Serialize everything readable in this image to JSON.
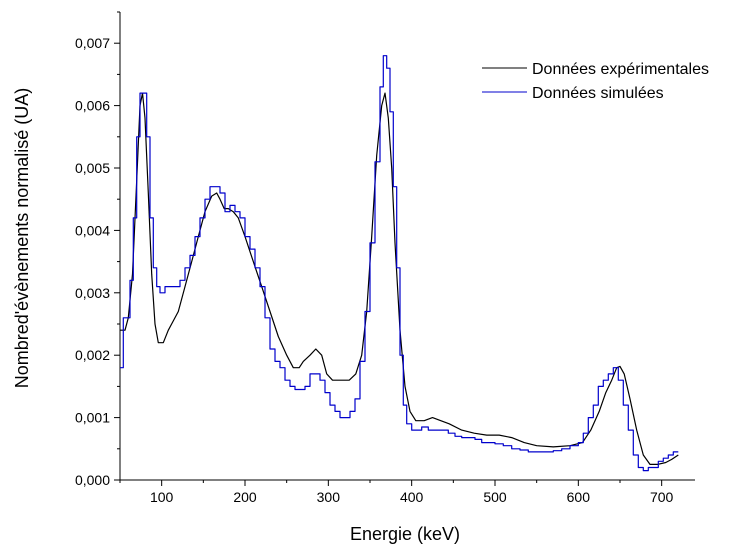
{
  "chart_data": {
    "type": "line",
    "title": "",
    "xlabel": "Energie (keV)",
    "ylabel": "Nombred'évènements normalisé (UA)",
    "xlim": [
      50,
      740
    ],
    "ylim": [
      0,
      0.0075
    ],
    "x_ticks": [
      100,
      200,
      300,
      400,
      500,
      600,
      700
    ],
    "y_ticks": [
      {
        "value": 0.0,
        "label": "0,000"
      },
      {
        "value": 0.001,
        "label": "0,001"
      },
      {
        "value": 0.002,
        "label": "0,002"
      },
      {
        "value": 0.003,
        "label": "0,003"
      },
      {
        "value": 0.004,
        "label": "0,004"
      },
      {
        "value": 0.005,
        "label": "0,005"
      },
      {
        "value": 0.006,
        "label": "0,006"
      },
      {
        "value": 0.007,
        "label": "0,007"
      }
    ],
    "grid": false,
    "legend_position": "top-right",
    "series": [
      {
        "name": "Données expérimentales",
        "color": "#000000",
        "style": "line",
        "points": [
          [
            50,
            0.0024
          ],
          [
            56,
            0.0024
          ],
          [
            60,
            0.0026
          ],
          [
            65,
            0.0033
          ],
          [
            70,
            0.0048
          ],
          [
            74,
            0.006
          ],
          [
            77,
            0.0062
          ],
          [
            80,
            0.0058
          ],
          [
            84,
            0.0046
          ],
          [
            88,
            0.0033
          ],
          [
            92,
            0.0025
          ],
          [
            96,
            0.0022
          ],
          [
            102,
            0.0022
          ],
          [
            108,
            0.0024
          ],
          [
            114,
            0.00255
          ],
          [
            120,
            0.0027
          ],
          [
            128,
            0.0031
          ],
          [
            136,
            0.0035
          ],
          [
            144,
            0.0039
          ],
          [
            152,
            0.0043
          ],
          [
            160,
            0.00455
          ],
          [
            166,
            0.0046
          ],
          [
            170,
            0.0045
          ],
          [
            175,
            0.00435
          ],
          [
            180,
            0.00435
          ],
          [
            186,
            0.0043
          ],
          [
            192,
            0.0042
          ],
          [
            200,
            0.0039
          ],
          [
            210,
            0.0035
          ],
          [
            220,
            0.0031
          ],
          [
            230,
            0.0027
          ],
          [
            240,
            0.0023
          ],
          [
            250,
            0.002
          ],
          [
            258,
            0.0018
          ],
          [
            265,
            0.0018
          ],
          [
            270,
            0.0019
          ],
          [
            278,
            0.002
          ],
          [
            285,
            0.0021
          ],
          [
            292,
            0.002
          ],
          [
            298,
            0.0017
          ],
          [
            305,
            0.0016
          ],
          [
            315,
            0.0016
          ],
          [
            325,
            0.0016
          ],
          [
            333,
            0.0017
          ],
          [
            340,
            0.002
          ],
          [
            346,
            0.0027
          ],
          [
            352,
            0.0039
          ],
          [
            358,
            0.0052
          ],
          [
            364,
            0.006
          ],
          [
            368,
            0.0062
          ],
          [
            372,
            0.0058
          ],
          [
            376,
            0.005
          ],
          [
            380,
            0.0038
          ],
          [
            386,
            0.0024
          ],
          [
            392,
            0.0015
          ],
          [
            398,
            0.0011
          ],
          [
            405,
            0.00095
          ],
          [
            415,
            0.00095
          ],
          [
            425,
            0.001
          ],
          [
            435,
            0.00095
          ],
          [
            445,
            0.0009
          ],
          [
            460,
            0.0008
          ],
          [
            475,
            0.00075
          ],
          [
            490,
            0.00072
          ],
          [
            505,
            0.00072
          ],
          [
            520,
            0.00068
          ],
          [
            535,
            0.0006
          ],
          [
            550,
            0.00055
          ],
          [
            570,
            0.00053
          ],
          [
            590,
            0.00055
          ],
          [
            605,
            0.0006
          ],
          [
            615,
            0.0008
          ],
          [
            625,
            0.0011
          ],
          [
            633,
            0.0014
          ],
          [
            640,
            0.0016
          ],
          [
            646,
            0.0018
          ],
          [
            650,
            0.00182
          ],
          [
            655,
            0.0017
          ],
          [
            662,
            0.0013
          ],
          [
            670,
            0.0008
          ],
          [
            678,
            0.0004
          ],
          [
            686,
            0.00025
          ],
          [
            695,
            0.00025
          ],
          [
            705,
            0.00028
          ],
          [
            712,
            0.00033
          ],
          [
            720,
            0.0004
          ]
        ]
      },
      {
        "name": "Données simulées",
        "color": "#0000cc",
        "style": "step",
        "points": [
          [
            50,
            0.0018
          ],
          [
            54,
            0.0026
          ],
          [
            58,
            0.0026
          ],
          [
            62,
            0.0032
          ],
          [
            66,
            0.0042
          ],
          [
            70,
            0.0055
          ],
          [
            74,
            0.0062
          ],
          [
            78,
            0.0062
          ],
          [
            82,
            0.0055
          ],
          [
            86,
            0.0042
          ],
          [
            90,
            0.0034
          ],
          [
            94,
            0.0031
          ],
          [
            98,
            0.003
          ],
          [
            104,
            0.0031
          ],
          [
            110,
            0.0031
          ],
          [
            116,
            0.0031
          ],
          [
            122,
            0.0032
          ],
          [
            128,
            0.0034
          ],
          [
            134,
            0.0036
          ],
          [
            140,
            0.0039
          ],
          [
            146,
            0.0042
          ],
          [
            152,
            0.0045
          ],
          [
            158,
            0.0047
          ],
          [
            164,
            0.0047
          ],
          [
            170,
            0.0046
          ],
          [
            176,
            0.0043
          ],
          [
            182,
            0.0044
          ],
          [
            188,
            0.0043
          ],
          [
            194,
            0.0042
          ],
          [
            200,
            0.0039
          ],
          [
            206,
            0.0037
          ],
          [
            212,
            0.0034
          ],
          [
            218,
            0.0031
          ],
          [
            224,
            0.0026
          ],
          [
            230,
            0.0021
          ],
          [
            236,
            0.0019
          ],
          [
            242,
            0.0018
          ],
          [
            248,
            0.0016
          ],
          [
            254,
            0.0015
          ],
          [
            260,
            0.00145
          ],
          [
            266,
            0.00145
          ],
          [
            272,
            0.0015
          ],
          [
            278,
            0.0017
          ],
          [
            284,
            0.0017
          ],
          [
            290,
            0.0016
          ],
          [
            296,
            0.0014
          ],
          [
            302,
            0.0012
          ],
          [
            308,
            0.0011
          ],
          [
            314,
            0.001
          ],
          [
            320,
            0.001
          ],
          [
            326,
            0.0011
          ],
          [
            332,
            0.0013
          ],
          [
            338,
            0.0019
          ],
          [
            344,
            0.0027
          ],
          [
            350,
            0.0038
          ],
          [
            356,
            0.0051
          ],
          [
            362,
            0.0063
          ],
          [
            366,
            0.0068
          ],
          [
            370,
            0.0066
          ],
          [
            374,
            0.0059
          ],
          [
            378,
            0.0047
          ],
          [
            382,
            0.0034
          ],
          [
            386,
            0.002
          ],
          [
            390,
            0.0012
          ],
          [
            394,
            0.0009
          ],
          [
            400,
            0.0008
          ],
          [
            406,
            0.0008
          ],
          [
            412,
            0.00085
          ],
          [
            420,
            0.0008
          ],
          [
            428,
            0.0008
          ],
          [
            436,
            0.0008
          ],
          [
            444,
            0.00075
          ],
          [
            452,
            0.0007
          ],
          [
            460,
            0.00068
          ],
          [
            468,
            0.00068
          ],
          [
            476,
            0.00065
          ],
          [
            484,
            0.0006
          ],
          [
            492,
            0.0006
          ],
          [
            500,
            0.00058
          ],
          [
            510,
            0.00055
          ],
          [
            520,
            0.0005
          ],
          [
            530,
            0.00048
          ],
          [
            540,
            0.00045
          ],
          [
            550,
            0.00045
          ],
          [
            560,
            0.00045
          ],
          [
            570,
            0.00047
          ],
          [
            580,
            0.0005
          ],
          [
            590,
            0.00055
          ],
          [
            600,
            0.0006
          ],
          [
            606,
            0.00075
          ],
          [
            612,
            0.001
          ],
          [
            618,
            0.0012
          ],
          [
            624,
            0.0015
          ],
          [
            630,
            0.0016
          ],
          [
            636,
            0.0017
          ],
          [
            642,
            0.0018
          ],
          [
            648,
            0.0016
          ],
          [
            654,
            0.0012
          ],
          [
            660,
            0.0008
          ],
          [
            666,
            0.0004
          ],
          [
            672,
            0.0002
          ],
          [
            678,
            0.00015
          ],
          [
            684,
            0.0002
          ],
          [
            690,
            0.0002
          ],
          [
            696,
            0.0003
          ],
          [
            702,
            0.00035
          ],
          [
            708,
            0.0004
          ],
          [
            714,
            0.00045
          ],
          [
            720,
            0.00045
          ]
        ]
      }
    ]
  }
}
